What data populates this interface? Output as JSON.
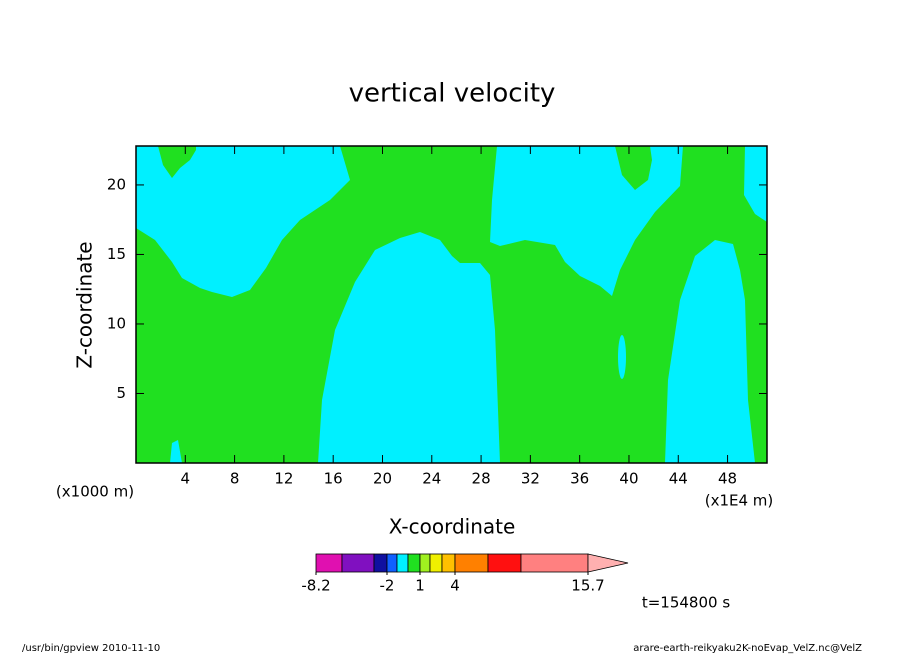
{
  "chart_data": {
    "type": "contour",
    "title": "vertical velocity",
    "x_label": "X-coordinate",
    "y_label": "Z-coordinate",
    "x_unit_left": "(x1000 m)",
    "x_unit_right": "(x1E4 m)",
    "xlim": [
      0,
      51.2
    ],
    "ylim": [
      0,
      22.8
    ],
    "xticks": [
      4,
      8,
      12,
      16,
      20,
      24,
      28,
      32,
      36,
      40,
      44,
      48
    ],
    "yticks": [
      5,
      10,
      15,
      20
    ],
    "colorbar": {
      "colors": [
        "#e010b0",
        "#8010c0",
        "#1010a0",
        "#1060ff",
        "#00f0ff",
        "#20e020",
        "#a0f020",
        "#f0f000",
        "#ffc000",
        "#ff8000",
        "#ff1010",
        "#ff8080",
        "#ffb0b0"
      ],
      "ticks": [
        -8.2,
        -2,
        1,
        4,
        15.7
      ]
    },
    "time_label": "t=154800 s",
    "footer_left": "/usr/bin/gpview  2010-11-10",
    "footer_right": "arare-earth-reikyaku2K-noEvap_VelZ.nc@VelZ"
  }
}
